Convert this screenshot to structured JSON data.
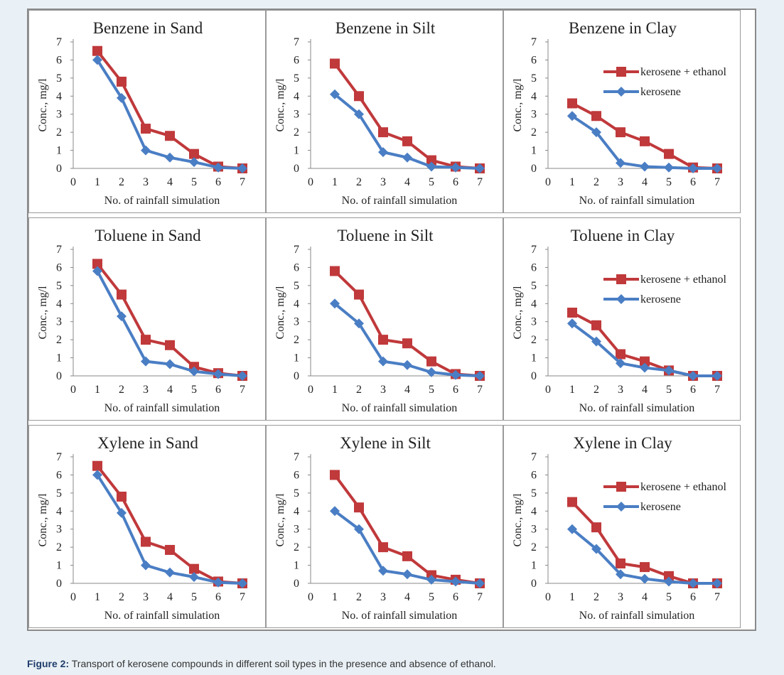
{
  "caption": {
    "label": "Figure 2:",
    "text": "Transport of kerosene compounds in different soil types in the presence and absence of ethanol."
  },
  "colors": {
    "kerosene_ethanol": "#c0393b",
    "kerosene": "#4a7ec4"
  },
  "chart_data": [
    {
      "type": "line",
      "title": "Benzene in Sand",
      "xlabel": "No. of rainfall simulation",
      "ylabel": "Conc., mg/l",
      "x": [
        1,
        2,
        3,
        4,
        5,
        6,
        7
      ],
      "xlim": [
        0,
        7
      ],
      "ylim": [
        0,
        7
      ],
      "legend": null,
      "series": [
        {
          "values": [
            6.5,
            4.8,
            2.2,
            1.8,
            0.8,
            0.1,
            0.0
          ]
        },
        {
          "values": [
            6.0,
            3.9,
            1.0,
            0.6,
            0.35,
            0.05,
            0.0
          ]
        }
      ]
    },
    {
      "type": "line",
      "title": "Benzene in Silt",
      "xlabel": "No. of rainfall simulation",
      "ylabel": "Conc., mg/l",
      "x": [
        1,
        2,
        3,
        4,
        5,
        6,
        7
      ],
      "xlim": [
        0,
        7
      ],
      "ylim": [
        0,
        7
      ],
      "legend": null,
      "series": [
        {
          "values": [
            5.8,
            4.0,
            2.0,
            1.5,
            0.45,
            0.1,
            0.0
          ]
        },
        {
          "values": [
            4.1,
            3.0,
            0.9,
            0.6,
            0.1,
            0.05,
            0.0
          ]
        }
      ]
    },
    {
      "type": "line",
      "title": "Benzene in Clay",
      "xlabel": "No. of rainfall simulation",
      "ylabel": "Conc., mg/l",
      "x": [
        1,
        2,
        3,
        4,
        5,
        6,
        7
      ],
      "xlim": [
        0,
        7
      ],
      "ylim": [
        0,
        7
      ],
      "legend": "top-right",
      "series": [
        {
          "name": "kerosene + ethanol",
          "values": [
            3.6,
            2.9,
            2.0,
            1.5,
            0.8,
            0.05,
            0.0
          ]
        },
        {
          "name": "kerosene",
          "values": [
            2.9,
            2.0,
            0.3,
            0.1,
            0.05,
            0.0,
            0.0
          ]
        }
      ]
    },
    {
      "type": "line",
      "title": "Toluene in Sand",
      "xlabel": "No. of rainfall simulation",
      "ylabel": "Conc., mg/l",
      "x": [
        1,
        2,
        3,
        4,
        5,
        6,
        7
      ],
      "xlim": [
        0,
        7
      ],
      "ylim": [
        0,
        7
      ],
      "legend": null,
      "series": [
        {
          "values": [
            6.2,
            4.5,
            2.0,
            1.7,
            0.5,
            0.15,
            0.0
          ]
        },
        {
          "values": [
            5.8,
            3.3,
            0.8,
            0.65,
            0.25,
            0.1,
            0.0
          ]
        }
      ]
    },
    {
      "type": "line",
      "title": "Toluene in Silt",
      "xlabel": "No. of rainfall simulation",
      "ylabel": "Conc., mg/l",
      "x": [
        1,
        2,
        3,
        4,
        5,
        6,
        7
      ],
      "xlim": [
        0,
        7
      ],
      "ylim": [
        0,
        7
      ],
      "legend": null,
      "series": [
        {
          "values": [
            5.8,
            4.5,
            2.0,
            1.8,
            0.8,
            0.1,
            0.0
          ]
        },
        {
          "values": [
            4.0,
            2.9,
            0.8,
            0.6,
            0.2,
            0.05,
            0.0
          ]
        }
      ]
    },
    {
      "type": "line",
      "title": "Toluene in Clay",
      "xlabel": "No. of rainfall simulation",
      "ylabel": "Conc., mg/l",
      "x": [
        1,
        2,
        3,
        4,
        5,
        6,
        7
      ],
      "xlim": [
        0,
        7
      ],
      "ylim": [
        0,
        7
      ],
      "legend": "top-right",
      "series": [
        {
          "name": "kerosene + ethanol",
          "values": [
            3.5,
            2.8,
            1.2,
            0.8,
            0.3,
            0.0,
            0.0
          ]
        },
        {
          "name": "kerosene",
          "values": [
            2.9,
            1.9,
            0.7,
            0.45,
            0.3,
            0.0,
            0.0
          ]
        }
      ]
    },
    {
      "type": "line",
      "title": "Xylene in Sand",
      "xlabel": "No. of rainfall simulation",
      "ylabel": "Conc., mg/l",
      "x": [
        1,
        2,
        3,
        4,
        5,
        6,
        7
      ],
      "xlim": [
        0,
        7
      ],
      "ylim": [
        0,
        7
      ],
      "legend": null,
      "series": [
        {
          "values": [
            6.5,
            4.8,
            2.3,
            1.85,
            0.8,
            0.1,
            0.0
          ]
        },
        {
          "values": [
            6.0,
            3.9,
            1.0,
            0.6,
            0.35,
            0.05,
            0.0
          ]
        }
      ]
    },
    {
      "type": "line",
      "title": "Xylene in Silt",
      "xlabel": "No. of rainfall simulation",
      "ylabel": "Conc., mg/l",
      "x": [
        1,
        2,
        3,
        4,
        5,
        6,
        7
      ],
      "xlim": [
        0,
        7
      ],
      "ylim": [
        0,
        7
      ],
      "legend": null,
      "series": [
        {
          "values": [
            6.0,
            4.2,
            2.0,
            1.5,
            0.45,
            0.2,
            0.0
          ]
        },
        {
          "values": [
            4.0,
            3.0,
            0.7,
            0.5,
            0.2,
            0.1,
            0.0
          ]
        }
      ]
    },
    {
      "type": "line",
      "title": "Xylene in Clay",
      "xlabel": "No. of rainfall simulation",
      "ylabel": "Conc., mg/l",
      "x": [
        1,
        2,
        3,
        4,
        5,
        6,
        7
      ],
      "xlim": [
        0,
        7
      ],
      "ylim": [
        0,
        7
      ],
      "legend": "top-right",
      "series": [
        {
          "name": "kerosene + ethanol",
          "values": [
            4.5,
            3.1,
            1.1,
            0.9,
            0.4,
            0.0,
            0.0
          ]
        },
        {
          "name": "kerosene",
          "values": [
            3.0,
            1.9,
            0.5,
            0.25,
            0.1,
            0.0,
            0.0
          ]
        }
      ]
    }
  ]
}
